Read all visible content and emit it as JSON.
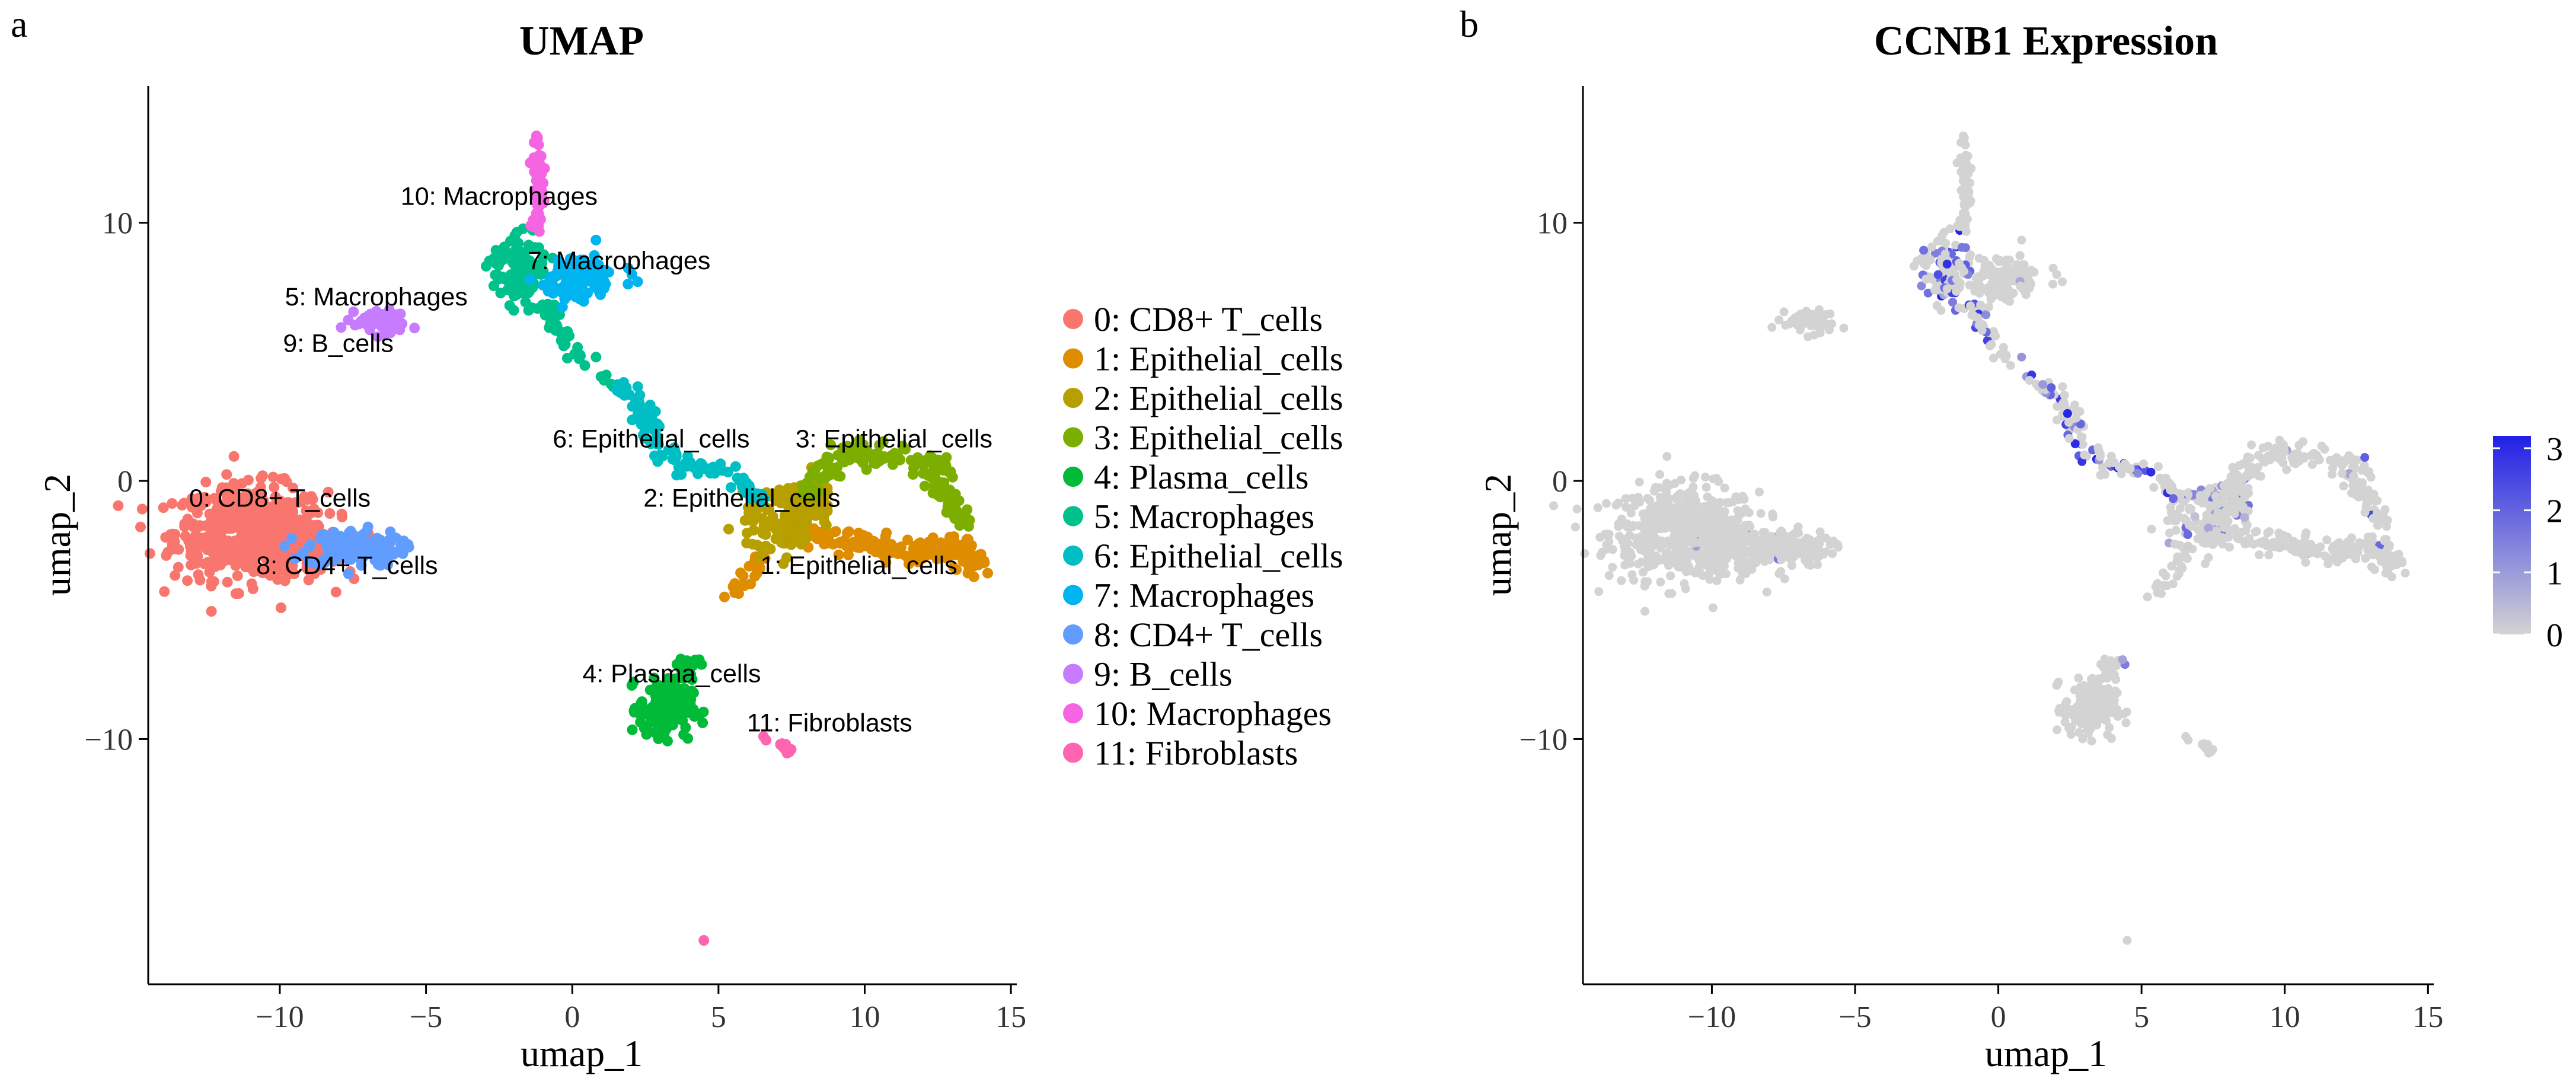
{
  "panel_labels": {
    "a": "a",
    "b": "b"
  },
  "chart_data": [
    {
      "type": "scatter",
      "title": "UMAP",
      "xlabel": "umap_1",
      "ylabel": "umap_2",
      "xlim": [
        -14.5,
        15.2
      ],
      "ylim": [
        -19.5,
        15.3
      ],
      "xticks": [
        -10,
        -5,
        0,
        5,
        10,
        15
      ],
      "yticks": [
        10,
        0,
        -10
      ],
      "tick_labels_x": [
        "−10",
        "−5",
        "0",
        "5",
        "10",
        "15"
      ],
      "tick_labels_y": [
        "10",
        "0",
        "−10"
      ],
      "grid": false,
      "legend_position": "right",
      "clusters": [
        {
          "id": 0,
          "legend": "0: CD8+ T_cells",
          "color": "#F8766D",
          "centroid": [
            -10.8,
            -2.2
          ],
          "spread": [
            1.4,
            1.0
          ]
        },
        {
          "id": 1,
          "legend": "1: Epithelial_cells",
          "color": "#DE8C00",
          "centroid": [
            12.0,
            -2.3
          ],
          "spread": [
            1.2,
            0.8
          ]
        },
        {
          "id": 2,
          "legend": "2: Epithelial_cells",
          "color": "#B79F00",
          "centroid": [
            7.2,
            -1.8
          ],
          "spread": [
            0.9,
            1.0
          ]
        },
        {
          "id": 3,
          "legend": "3: Epithelial_cells",
          "color": "#7CAE00",
          "centroid": [
            10.5,
            0.6
          ],
          "spread": [
            1.5,
            0.6
          ]
        },
        {
          "id": 4,
          "legend": "4: Plasma_cells",
          "color": "#00BA38",
          "centroid": [
            3.2,
            -8.6
          ],
          "spread": [
            0.5,
            0.8
          ]
        },
        {
          "id": 5,
          "legend": "5: Macrophages",
          "color": "#00C08B",
          "centroid": [
            -1.6,
            8.0
          ],
          "spread": [
            0.6,
            0.7
          ]
        },
        {
          "id": 6,
          "legend": "6: Epithelial_cells",
          "color": "#00BFC4",
          "centroid": [
            3.8,
            0.5
          ],
          "spread": [
            1.2,
            0.4
          ]
        },
        {
          "id": 7,
          "legend": "7: Macrophages",
          "color": "#00B4F0",
          "centroid": [
            0.2,
            7.9
          ],
          "spread": [
            0.8,
            0.5
          ]
        },
        {
          "id": 8,
          "legend": "8: CD4+ T_cells",
          "color": "#619CFF",
          "centroid": [
            -7.6,
            -2.6
          ],
          "spread": [
            0.9,
            0.4
          ]
        },
        {
          "id": 9,
          "legend": "9: B_cells",
          "color": "#C77CFF",
          "centroid": [
            -6.6,
            6.2
          ],
          "spread": [
            0.5,
            0.25
          ]
        },
        {
          "id": 10,
          "legend": "10: Macrophages",
          "color": "#F564E3",
          "centroid": [
            -1.2,
            11.5
          ],
          "spread": [
            0.15,
            1.2
          ]
        },
        {
          "id": 11,
          "legend": "11: Fibroblasts",
          "color": "#FF64B0",
          "centroid": [
            7.0,
            -10.1
          ],
          "spread": [
            0.4,
            0.2
          ]
        }
      ],
      "annotations": [
        {
          "text": "10: Macrophages",
          "x": -2.5,
          "y": 10.7
        },
        {
          "text": "7: Macrophages",
          "x": 1.6,
          "y": 8.2
        },
        {
          "text": "5: Macrophages",
          "x": -6.7,
          "y": 6.8
        },
        {
          "text": "9: B_cells",
          "x": -8.0,
          "y": 5.0
        },
        {
          "text": "6: Epithelial_cells",
          "x": 2.7,
          "y": 1.3
        },
        {
          "text": "3: Epithelial_cells",
          "x": 11.0,
          "y": 1.3
        },
        {
          "text": "0: CD8+ T_cells",
          "x": -10.0,
          "y": -1.0
        },
        {
          "text": "2: Epithelial_cells",
          "x": 5.8,
          "y": -1.0
        },
        {
          "text": "8: CD4+ T_cells",
          "x": -7.7,
          "y": -3.6
        },
        {
          "text": "1: Epithelial_cells",
          "x": 9.8,
          "y": -3.6
        },
        {
          "text": "4: Plasma_cells",
          "x": 3.4,
          "y": -7.8
        },
        {
          "text": "11: Fibroblasts",
          "x": 8.8,
          "y": -9.7
        }
      ]
    },
    {
      "type": "scatter",
      "title": "CCNB1 Expression",
      "xlabel": "umap_1",
      "ylabel": "umap_2",
      "xlim": [
        -14.5,
        15.2
      ],
      "ylim": [
        -19.5,
        15.3
      ],
      "xticks": [
        -10,
        -5,
        0,
        5,
        10,
        15
      ],
      "yticks": [
        10,
        0,
        -10
      ],
      "tick_labels_x": [
        "−10",
        "−5",
        "0",
        "5",
        "10",
        "15"
      ],
      "tick_labels_y": [
        "10",
        "0",
        "−10"
      ],
      "grid": false,
      "colorbar": {
        "min": 0,
        "max": 3.2,
        "ticks": [
          0,
          1,
          2,
          3
        ],
        "tick_labels": [
          "0",
          "1",
          "2",
          "3"
        ],
        "low_color": "#D3D3D3",
        "high_color": "#2020E8"
      }
    }
  ],
  "colors": {
    "axis": "#000000",
    "low_expression": "#D3D3D3",
    "high_expression": "#2020E8"
  }
}
